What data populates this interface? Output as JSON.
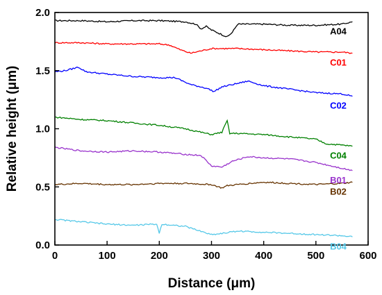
{
  "chart_data": {
    "type": "line",
    "xlabel": "Distance (μm)",
    "ylabel": "Relative height (μm)",
    "xlim": [
      0,
      600
    ],
    "ylim": [
      0.0,
      2.0
    ],
    "xticks": [
      0,
      100,
      200,
      300,
      400,
      500,
      600
    ],
    "yticks": [
      0.0,
      0.5,
      1.0,
      1.5,
      2.0
    ],
    "grid": false,
    "series": [
      {
        "name": "A04",
        "color": "#000000",
        "x": [
          0,
          50,
          100,
          150,
          200,
          250,
          270,
          280,
          290,
          300,
          310,
          320,
          330,
          340,
          350,
          360,
          400,
          450,
          500,
          550,
          570
        ],
        "y": [
          1.93,
          1.93,
          1.92,
          1.93,
          1.93,
          1.92,
          1.9,
          1.86,
          1.88,
          1.85,
          1.83,
          1.81,
          1.79,
          1.83,
          1.9,
          1.9,
          1.9,
          1.89,
          1.89,
          1.9,
          1.92
        ]
      },
      {
        "name": "C01",
        "color": "#ff0000",
        "x": [
          0,
          50,
          100,
          150,
          200,
          220,
          240,
          260,
          280,
          300,
          350,
          400,
          450,
          500,
          550,
          570
        ],
        "y": [
          1.74,
          1.74,
          1.73,
          1.73,
          1.73,
          1.72,
          1.68,
          1.65,
          1.67,
          1.69,
          1.69,
          1.68,
          1.67,
          1.66,
          1.66,
          1.65
        ]
      },
      {
        "name": "C02",
        "color": "#0000ff",
        "x": [
          0,
          20,
          45,
          60,
          100,
          150,
          200,
          230,
          260,
          290,
          305,
          320,
          350,
          370,
          400,
          450,
          500,
          550,
          570
        ],
        "y": [
          1.49,
          1.5,
          1.53,
          1.49,
          1.47,
          1.45,
          1.44,
          1.44,
          1.38,
          1.35,
          1.32,
          1.36,
          1.39,
          1.41,
          1.37,
          1.34,
          1.31,
          1.3,
          1.28
        ]
      },
      {
        "name": "C04",
        "color": "#008000",
        "x": [
          0,
          50,
          100,
          150,
          200,
          250,
          300,
          320,
          330,
          335,
          340,
          350,
          400,
          450,
          500,
          520,
          550,
          570
        ],
        "y": [
          1.1,
          1.08,
          1.07,
          1.05,
          1.03,
          1.0,
          0.95,
          0.97,
          1.07,
          0.96,
          0.96,
          0.96,
          0.95,
          0.93,
          0.91,
          0.87,
          0.86,
          0.85
        ]
      },
      {
        "name": "B01",
        "color": "#9933cc",
        "x": [
          0,
          50,
          100,
          150,
          200,
          250,
          280,
          300,
          320,
          340,
          370,
          400,
          450,
          500,
          550,
          570
        ],
        "y": [
          0.84,
          0.81,
          0.8,
          0.81,
          0.8,
          0.78,
          0.77,
          0.68,
          0.67,
          0.72,
          0.76,
          0.75,
          0.74,
          0.71,
          0.66,
          0.64
        ]
      },
      {
        "name": "B02",
        "color": "#663300",
        "x": [
          0,
          50,
          100,
          150,
          200,
          250,
          300,
          320,
          330,
          350,
          400,
          450,
          500,
          550,
          570
        ],
        "y": [
          0.52,
          0.53,
          0.52,
          0.52,
          0.53,
          0.53,
          0.52,
          0.49,
          0.51,
          0.52,
          0.54,
          0.53,
          0.52,
          0.53,
          0.54
        ]
      },
      {
        "name": "B04",
        "color": "#55c8e8",
        "x": [
          0,
          25,
          50,
          100,
          150,
          195,
          200,
          205,
          250,
          300,
          320,
          350,
          400,
          450,
          500,
          550,
          570
        ],
        "y": [
          0.22,
          0.21,
          0.2,
          0.18,
          0.17,
          0.18,
          0.1,
          0.18,
          0.16,
          0.09,
          0.1,
          0.12,
          0.11,
          0.1,
          0.09,
          0.08,
          0.07
        ]
      }
    ]
  }
}
